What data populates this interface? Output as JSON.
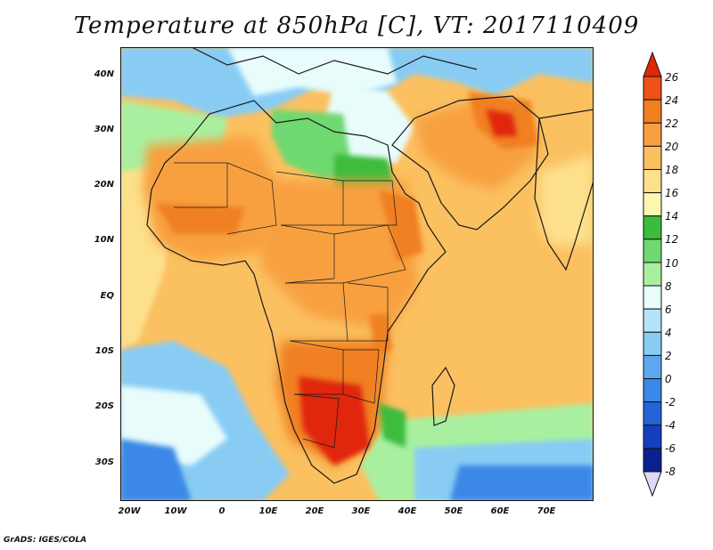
{
  "title": "Temperature at 850hPa [C], VT: 2017110409",
  "credit": "GrADS: IGES/COLA",
  "map": {
    "lat_labels": [
      "40N",
      "30N",
      "20N",
      "10N",
      "EQ",
      "10S",
      "20S",
      "30S"
    ],
    "lon_labels": [
      "20W",
      "10W",
      "0",
      "10E",
      "20E",
      "30E",
      "40E",
      "50E",
      "60E",
      "70E"
    ],
    "lon_range": [
      -22,
      80
    ],
    "lat_range": [
      -37,
      45
    ]
  },
  "colorbar": {
    "labels": [
      "26",
      "24",
      "22",
      "20",
      "18",
      "16",
      "14",
      "12",
      "10",
      "8",
      "6",
      "4",
      "2",
      "0",
      "-2",
      "-4",
      "-6",
      "-8"
    ],
    "colors": [
      "#e02808",
      "#f05018",
      "#f08020",
      "#f8a040",
      "#fbc060",
      "#fde08c",
      "#fdf6b0",
      "#3cbc3c",
      "#70d870",
      "#a8f0a0",
      "#e8fcfc",
      "#b4e4f8",
      "#88ccf4",
      "#5ca8f0",
      "#3a88e8",
      "#2464d8",
      "#1440c0",
      "#0a2090",
      "#1a0e60"
    ]
  },
  "legend_levels": [
    {
      "value": "26",
      "color": "#e02808"
    },
    {
      "value": "<-8",
      "color": "#1a0e60"
    }
  ]
}
